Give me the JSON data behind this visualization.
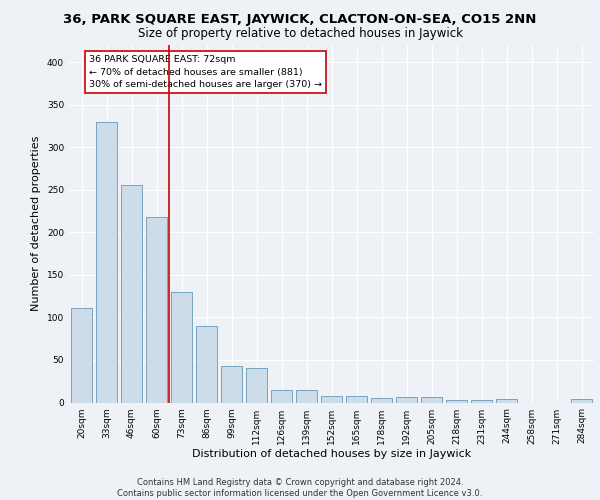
{
  "title_line1": "36, PARK SQUARE EAST, JAYWICK, CLACTON-ON-SEA, CO15 2NN",
  "title_line2": "Size of property relative to detached houses in Jaywick",
  "xlabel": "Distribution of detached houses by size in Jaywick",
  "ylabel": "Number of detached properties",
  "categories": [
    "20sqm",
    "33sqm",
    "46sqm",
    "60sqm",
    "73sqm",
    "86sqm",
    "99sqm",
    "112sqm",
    "126sqm",
    "139sqm",
    "152sqm",
    "165sqm",
    "178sqm",
    "192sqm",
    "205sqm",
    "218sqm",
    "231sqm",
    "244sqm",
    "258sqm",
    "271sqm",
    "284sqm"
  ],
  "values": [
    111,
    329,
    256,
    218,
    130,
    90,
    43,
    40,
    15,
    15,
    8,
    8,
    5,
    6,
    6,
    3,
    3,
    4,
    0,
    0,
    4
  ],
  "bar_color": "#ccdce8",
  "bar_edge_color": "#6699bb",
  "bar_width": 0.85,
  "vline_x": 4.0,
  "vline_color": "#cc0000",
  "annotation_box_text": "36 PARK SQUARE EAST: 72sqm\n← 70% of detached houses are smaller (881)\n30% of semi-detached houses are larger (370) →",
  "ylim": [
    0,
    420
  ],
  "yticks": [
    0,
    50,
    100,
    150,
    200,
    250,
    300,
    350,
    400
  ],
  "footer_text": "Contains HM Land Registry data © Crown copyright and database right 2024.\nContains public sector information licensed under the Open Government Licence v3.0.",
  "bg_color": "#eef2f7",
  "grid_color": "#ffffff",
  "title_fontsize": 9.5,
  "subtitle_fontsize": 8.5,
  "axis_label_fontsize": 8,
  "tick_fontsize": 6.5,
  "footer_fontsize": 6
}
